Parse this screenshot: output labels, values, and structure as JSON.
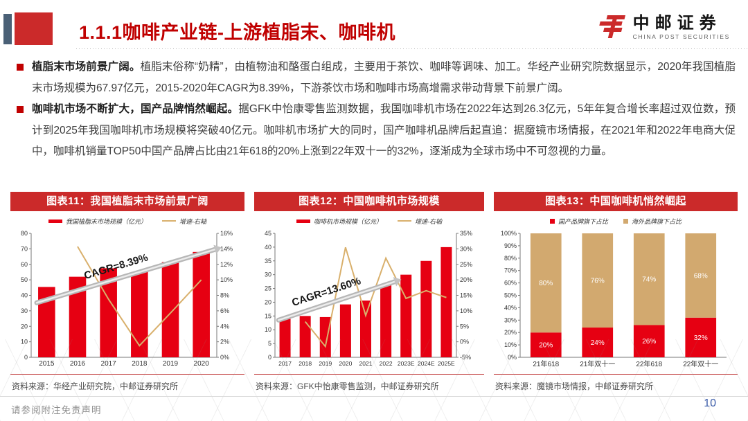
{
  "header": {
    "title": "1.1.1咖啡产业链-上游植脂末、咖啡机",
    "logo": {
      "company": "中邮证券",
      "company_en": "CHINA POST SECURITIES"
    }
  },
  "bullets": [
    {
      "lead": "植脂末市场前景广阔。",
      "text": "植脂末俗称“奶精”，由植物油和酪蛋白组成，主要用于茶饮、咖啡等调味、加工。华经产业研究院数据显示，2020年我国植脂末市场规模为67.97亿元，2015-2020年CAGR为8.39%，下游茶饮市场和咖啡市场高增需求带动背景下前景广阔。"
    },
    {
      "lead": "咖啡机市场不断扩大，国产品牌悄然崛起。",
      "text": "据GFK中怡康零售监测数据，我国咖啡机市场在2022年达到26.3亿元，5年年复合增长率超过双位数，预计到2025年我国咖啡机市场规模将突破40亿元。咖啡机市场扩大的同时，国产咖啡机品牌后起直追：据魔镜市场情报，在2021年和2022年电商大促中，咖啡机销量TOP50中国产品牌占比由21年618的20%上涨到22年双十一的32%，逐渐成为全球市场中不可忽视的力量。"
    }
  ],
  "panels": [
    {
      "title": "图表11：我国植脂末市场前景广阔",
      "source": "资料来源：华经产业研究院，中邮证券研究所"
    },
    {
      "title": "图表12：中国咖啡机市场规模",
      "source": "资料来源：GFK中怡康零售监测，中邮证券研究所"
    },
    {
      "title": "图表13：中国咖啡机悄然崛起",
      "source": "资料来源：魔镜市场情报，中邮证券研究所"
    }
  ],
  "chart_data": [
    {
      "type": "bar+line",
      "title": "图表11：我国植脂末市场前景广阔",
      "categories": [
        "2015",
        "2016",
        "2017",
        "2018",
        "2019",
        "2020"
      ],
      "series": [
        {
          "name": "我国植脂末市场规模（亿元）",
          "kind": "bar",
          "swatch": "bar",
          "axis": "left",
          "color": "#e60012",
          "values": [
            45.4,
            52,
            57.5,
            55,
            61.5,
            68
          ]
        },
        {
          "name": "增速-右轴",
          "kind": "line",
          "swatch": "line",
          "axis": "right",
          "color": "#d9b06c",
          "values": [
            null,
            14.3,
            7.5,
            1.5,
            5.7,
            10
          ]
        }
      ],
      "left_axis": {
        "min": 0,
        "max": 80,
        "step": 10
      },
      "right_axis": {
        "min": 0,
        "max": 16,
        "step": 2,
        "suffix": "%"
      },
      "annotation": {
        "text": "CAGR=8.39%",
        "from": [
          0.03,
          0.44
        ],
        "to": [
          0.99,
          0.87
        ],
        "label_at": 0.45
      },
      "x_font": 10,
      "bar_ratio": 0.55,
      "legend_position": "top",
      "grid": false
    },
    {
      "type": "bar+line",
      "title": "图表12：中国咖啡机市场规模",
      "categories": [
        "2017",
        "2018",
        "2019",
        "2020",
        "2021",
        "2022",
        "2023E",
        "2024E",
        "2025E"
      ],
      "series": [
        {
          "name": "咖啡机市场规模（亿元）",
          "kind": "bar",
          "swatch": "bar",
          "axis": "left",
          "color": "#e60012",
          "values": [
            14,
            15,
            14.6,
            19.2,
            20.6,
            26.3,
            30,
            35,
            40
          ]
        },
        {
          "name": "增速-右轴",
          "kind": "line",
          "swatch": "line",
          "axis": "right",
          "color": "#d9b06c",
          "values": [
            null,
            6.5,
            -1.5,
            30.5,
            8.5,
            27,
            14,
            16.5,
            14.3
          ]
        }
      ],
      "left_axis": {
        "min": 0,
        "max": 45,
        "step": 5
      },
      "right_axis": {
        "min": -5,
        "max": 35,
        "step": 5,
        "suffix": "%"
      },
      "annotation": {
        "text": "CAGR=13.60%",
        "from": [
          0.02,
          0.3
        ],
        "to": [
          0.66,
          0.61
        ],
        "label_at": 0.42
      },
      "x_font": 8.5,
      "bar_ratio": 0.55,
      "legend_position": "top",
      "grid": false
    },
    {
      "type": "stacked_bar",
      "title": "图表13：中国咖啡机悄然崛起",
      "categories": [
        "21年618",
        "21年双十一",
        "22年618",
        "22年双十一"
      ],
      "series": [
        {
          "name": "国产品牌旗下占比",
          "kind": "bar",
          "swatch": "square",
          "color": "#e60012",
          "values": [
            20,
            24,
            26,
            32
          ]
        },
        {
          "name": "海外品牌旗下占比",
          "kind": "bar",
          "swatch": "square",
          "color": "#d2a96f",
          "values": [
            80,
            76,
            74,
            68
          ]
        }
      ],
      "y_axis": {
        "min": 0,
        "max": 100,
        "step": 10,
        "suffix": "%"
      },
      "x_font": 10,
      "bar_ratio": 0.6,
      "legend_position": "top",
      "grid": false
    }
  ],
  "footer": {
    "disclaimer": "请参阅附注免责声明",
    "page_number": "10"
  },
  "colors": {
    "brand_red": "#c00000",
    "panel_red": "#cb2a2a",
    "bar_red": "#e60012",
    "line_tan": "#d9b06c",
    "slate": "#4a6076",
    "page_blue": "#3a5ba9"
  }
}
